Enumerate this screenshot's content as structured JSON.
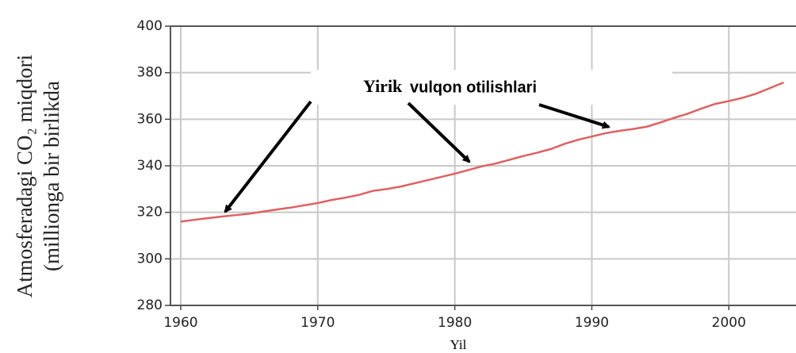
{
  "chart_data": {
    "type": "line",
    "y_label": [
      "Atmosferadagi CO₂ miqdori",
      "(millionga bir birlikda"
    ],
    "x_label": "Yil",
    "annotations": [
      "Yirik",
      "vulqon otilishlari"
    ],
    "x": [
      1960,
      1961,
      1962,
      1963,
      1964,
      1965,
      1966,
      1967,
      1968,
      1969,
      1970,
      1971,
      1972,
      1973,
      1974,
      1975,
      1976,
      1977,
      1978,
      1979,
      1980,
      1981,
      1982,
      1983,
      1984,
      1985,
      1986,
      1987,
      1988,
      1989,
      1990,
      1991,
      1992,
      1993,
      1994,
      1995,
      1996,
      1997,
      1998,
      1999,
      2000,
      2001,
      2002,
      2003,
      2004
    ],
    "series": [
      {
        "color": "#e06060",
        "values": [
          316,
          316.8,
          317.5,
          318.2,
          318.8,
          319.4,
          320.3,
          321.2,
          322,
          323,
          324,
          325.3,
          326.3,
          327.5,
          329.2,
          330,
          331,
          332.4,
          333.8,
          335.2,
          336.6,
          338.2,
          339.8,
          341,
          342.6,
          344.2,
          345.6,
          347.2,
          349.4,
          351.2,
          352.6,
          354,
          355,
          355.8,
          356.8,
          358.6,
          360.6,
          362.4,
          364.6,
          366.6,
          367.8,
          369.2,
          371,
          373.4,
          375.8
        ]
      }
    ],
    "xlim": [
      1959.25,
      2004.9
    ],
    "ylim": [
      280,
      400
    ],
    "xticks": [
      1960,
      1970,
      1980,
      1990,
      2000
    ],
    "yticks": [
      280,
      300,
      320,
      340,
      360,
      380,
      400
    ],
    "grid": true
  }
}
